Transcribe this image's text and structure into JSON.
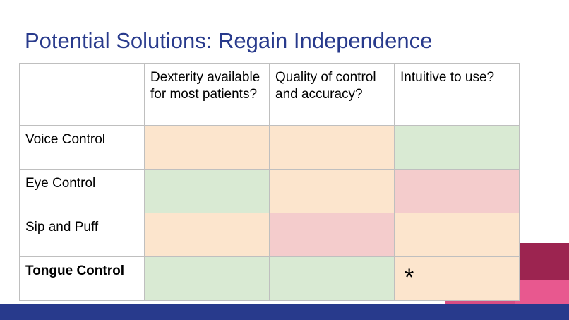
{
  "title": "Potential Solutions: Regain Independence",
  "colors": {
    "title": "#283a8c",
    "orange": "#fce5cd",
    "green": "#d9ead3",
    "red": "#f4cccc",
    "white": "#ffffff",
    "footer": "#283a8c",
    "accent_maroon": "#9c2450",
    "accent_pink": "#e8588f"
  },
  "table": {
    "headers": [
      "",
      "Dexterity available for most patients?",
      "Quality of control and accuracy?",
      "Intuitive to use?"
    ],
    "rows": [
      {
        "label": "Voice Control",
        "bold": false,
        "cells": [
          {
            "color": "orange",
            "text": ""
          },
          {
            "color": "orange",
            "text": ""
          },
          {
            "color": "green",
            "text": ""
          }
        ]
      },
      {
        "label": "Eye Control",
        "bold": false,
        "cells": [
          {
            "color": "green",
            "text": ""
          },
          {
            "color": "orange",
            "text": ""
          },
          {
            "color": "red",
            "text": ""
          }
        ]
      },
      {
        "label": "Sip and Puff",
        "bold": false,
        "cells": [
          {
            "color": "orange",
            "text": ""
          },
          {
            "color": "red",
            "text": ""
          },
          {
            "color": "orange",
            "text": ""
          }
        ]
      },
      {
        "label": "Tongue Control",
        "bold": true,
        "cells": [
          {
            "color": "green",
            "text": ""
          },
          {
            "color": "green",
            "text": ""
          },
          {
            "color": "orange",
            "text": "*"
          }
        ]
      }
    ]
  }
}
